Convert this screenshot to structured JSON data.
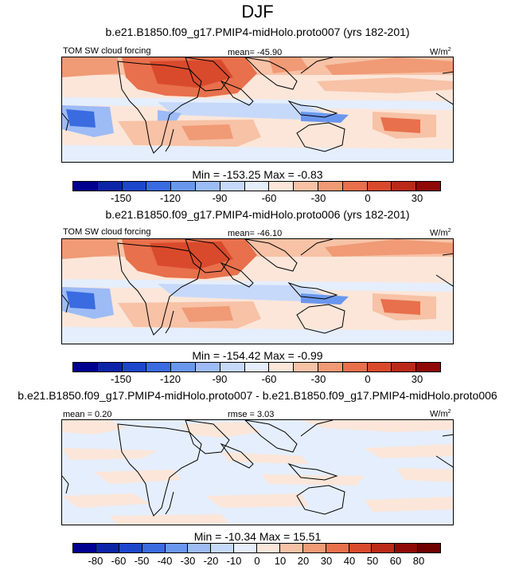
{
  "figure_title": "DJF",
  "panels": [
    {
      "title": "b.e21.B1850.f09_g17.PMIP4-midHolo.proto007 (yrs 182-201)",
      "left_label": "TOM SW cloud forcing",
      "mean_label": "mean= -45.90",
      "units": "W/m",
      "units_sup": "2",
      "stats": "Min = -153.25 Max =  -0.83",
      "colorbar_ticks": [
        "-150",
        "-120",
        "-90",
        "-60",
        "-30",
        "0",
        "30"
      ]
    },
    {
      "title": "b.e21.B1850.f09_g17.PMIP4-midHolo.proto006 (yrs 182-201)",
      "left_label": "TOM SW cloud forcing",
      "mean_label": "mean= -46.10",
      "units": "W/m",
      "units_sup": "2",
      "stats": "Min = -154.42 Max =  -0.99",
      "colorbar_ticks": [
        "-150",
        "-120",
        "-90",
        "-60",
        "-30",
        "0",
        "30"
      ]
    },
    {
      "title": "b.e21.B1850.f09_g17.PMIP4-midHolo.proto007 - b.e21.B1850.f09_g17.PMIP4-midHolo.proto006",
      "left_label": "mean =  0.20",
      "mean_label": "rmse =  3.03",
      "units": "W/m",
      "units_sup": "2",
      "stats": "Min = -10.34 Max =  15.51",
      "colorbar_ticks": [
        "-80",
        "-60",
        "-50",
        "-40",
        "-30",
        "-20",
        "-10",
        "0",
        "10",
        "20",
        "30",
        "40",
        "50",
        "60",
        "80"
      ]
    }
  ],
  "colors": {
    "abs_colorbar": [
      "#00008f",
      "#0b24a8",
      "#1c47cc",
      "#3a6be0",
      "#6a97ee",
      "#9dbbf5",
      "#c6d9fa",
      "#e5eefc",
      "#fbe6d9",
      "#f7c2a6",
      "#f09a76",
      "#e8704c",
      "#d94a2c",
      "#bb2a18",
      "#8f0a06"
    ],
    "diff_colorbar": [
      "#00008f",
      "#0b24a8",
      "#1c47cc",
      "#3a6be0",
      "#6a97ee",
      "#9dbbf5",
      "#c6d9fa",
      "#e5eefc",
      "#fbe6d9",
      "#f7c2a6",
      "#f09a76",
      "#e8704c",
      "#d94a2c",
      "#bb2a18",
      "#8f0a06",
      "#6e0000"
    ],
    "coastline": "#000000"
  }
}
